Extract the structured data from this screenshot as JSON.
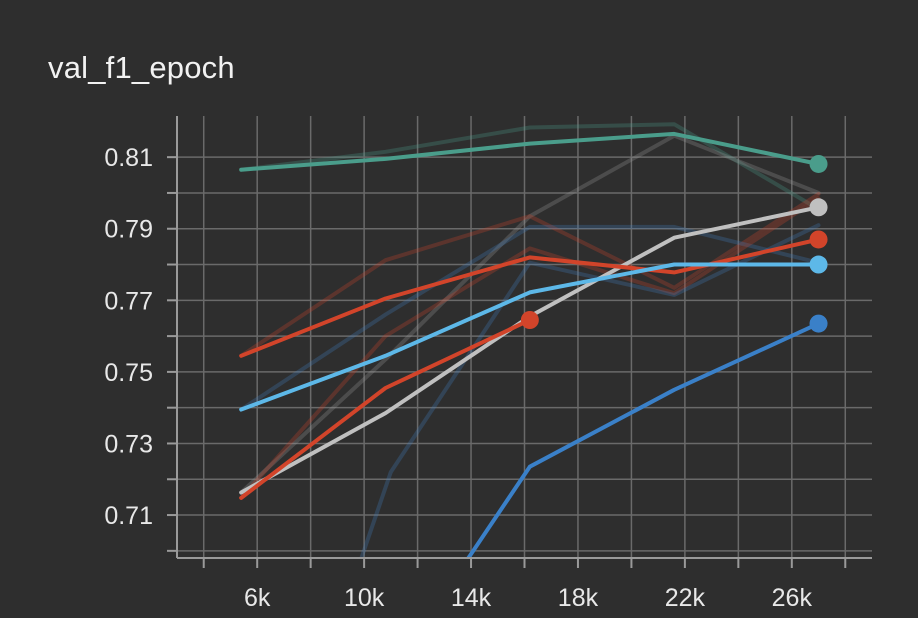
{
  "chart_data": {
    "type": "line",
    "title": "val_f1_epoch",
    "xlabel": "",
    "ylabel": "",
    "xlim": [
      3000,
      29000
    ],
    "ylim": [
      0.698,
      0.8215
    ],
    "x_ticks": [
      {
        "value": 6000,
        "label": "6k"
      },
      {
        "value": 10000,
        "label": "10k"
      },
      {
        "value": 14000,
        "label": "14k"
      },
      {
        "value": 18000,
        "label": "18k"
      },
      {
        "value": 22000,
        "label": "22k"
      },
      {
        "value": 26000,
        "label": "26k"
      }
    ],
    "x_minor_ticks": [
      4000,
      8000,
      12000,
      16000,
      20000,
      24000,
      28000
    ],
    "y_ticks": [
      {
        "value": 0.81,
        "label": "0.81"
      },
      {
        "value": 0.79,
        "label": "0.79"
      },
      {
        "value": 0.77,
        "label": "0.77"
      },
      {
        "value": 0.75,
        "label": "0.75"
      },
      {
        "value": 0.73,
        "label": "0.73"
      },
      {
        "value": 0.71,
        "label": "0.71"
      }
    ],
    "y_minor_ticks": [
      0.8,
      0.78,
      0.76,
      0.74,
      0.72,
      0.7
    ],
    "grid": true,
    "legend": "none",
    "series": [
      {
        "color": "#4a9d8b",
        "values": [
          [
            5400,
            0.8065
          ],
          [
            10800,
            0.8095
          ],
          [
            16200,
            0.8138
          ],
          [
            21600,
            0.8165
          ],
          [
            27000,
            0.8081
          ]
        ],
        "marker": true
      },
      {
        "color": "#c0c0c0",
        "values": [
          [
            5400,
            0.7163
          ],
          [
            10800,
            0.7385
          ],
          [
            16200,
            0.7655
          ],
          [
            21600,
            0.7875
          ],
          [
            27000,
            0.796
          ]
        ],
        "marker": true
      },
      {
        "color": "#d2442a",
        "values": [
          [
            5400,
            0.7545
          ],
          [
            10800,
            0.7705
          ],
          [
            16200,
            0.782
          ],
          [
            21600,
            0.7778
          ],
          [
            27000,
            0.787
          ]
        ],
        "marker": true
      },
      {
        "color": "#5db8e8",
        "values": [
          [
            5400,
            0.7395
          ],
          [
            10800,
            0.7545
          ],
          [
            16200,
            0.7722
          ],
          [
            21600,
            0.78
          ],
          [
            27000,
            0.78
          ]
        ],
        "marker": true
      },
      {
        "color": "#d2442a",
        "values": [
          [
            5400,
            0.7148
          ],
          [
            10800,
            0.7455
          ],
          [
            16200,
            0.7645
          ]
        ],
        "marker": true
      },
      {
        "color": "#3a80c8",
        "values": [
          [
            13900,
            0.698
          ],
          [
            16200,
            0.7235
          ],
          [
            21600,
            0.745
          ],
          [
            27000,
            0.7635
          ]
        ],
        "marker": true
      }
    ],
    "raw_series": [
      {
        "color": "#4a9d8b",
        "values": [
          [
            5400,
            0.8065
          ],
          [
            10800,
            0.8115
          ],
          [
            16200,
            0.8183
          ],
          [
            21600,
            0.8192
          ],
          [
            27000,
            0.7955
          ]
        ]
      },
      {
        "color": "#9a9a9a",
        "values": [
          [
            5400,
            0.7163
          ],
          [
            10800,
            0.7535
          ],
          [
            16200,
            0.7935
          ],
          [
            21600,
            0.816
          ],
          [
            27000,
            0.8
          ]
        ]
      },
      {
        "color": "#d2442a",
        "values": [
          [
            5400,
            0.7545
          ],
          [
            10800,
            0.7812
          ],
          [
            16200,
            0.7935
          ],
          [
            21600,
            0.7735
          ],
          [
            27000,
            0.7997
          ]
        ]
      },
      {
        "color": "#3f7fbf",
        "values": [
          [
            5400,
            0.7395
          ],
          [
            10800,
            0.766
          ],
          [
            16200,
            0.7905
          ],
          [
            21600,
            0.7905
          ],
          [
            27000,
            0.7805
          ]
        ]
      },
      {
        "color": "#d2442a",
        "values": [
          [
            5400,
            0.7148
          ],
          [
            10800,
            0.76
          ],
          [
            16200,
            0.7845
          ],
          [
            21600,
            0.772
          ],
          [
            27000,
            0.7985
          ]
        ]
      },
      {
        "color": "#3f7fbf",
        "values": [
          [
            9900,
            0.698
          ],
          [
            11000,
            0.722
          ],
          [
            16200,
            0.7805
          ],
          [
            21600,
            0.7715
          ],
          [
            27000,
            0.791
          ]
        ]
      }
    ]
  }
}
